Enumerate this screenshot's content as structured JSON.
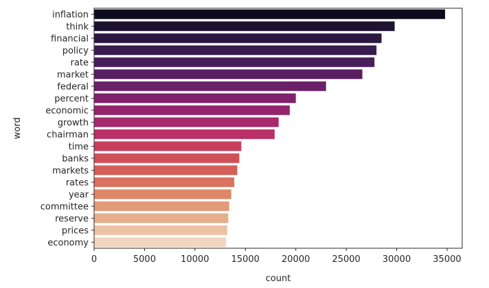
{
  "chart_data": {
    "type": "bar",
    "orientation": "horizontal",
    "categories": [
      "inflation",
      "think",
      "financial",
      "policy",
      "rate",
      "market",
      "federal",
      "percent",
      "economic",
      "growth",
      "chairman",
      "time",
      "banks",
      "markets",
      "rates",
      "year",
      "committee",
      "reserve",
      "prices",
      "economy"
    ],
    "values": [
      34800,
      29800,
      28500,
      28000,
      27800,
      26600,
      23000,
      20000,
      19400,
      18300,
      17900,
      14600,
      14400,
      14200,
      13900,
      13600,
      13400,
      13300,
      13200,
      13100
    ],
    "colors": [
      "#0f0b1f",
      "#1e1231",
      "#2c1741",
      "#3a1b4f",
      "#491e5b",
      "#581f63",
      "#6b2168",
      "#7f216b",
      "#93246b",
      "#a62a6a",
      "#b93066",
      "#c83f5e",
      "#cf5158",
      "#d35f57",
      "#d9735f",
      "#de8867",
      "#e29b77",
      "#e6ae8c",
      "#ecc2a6",
      "#f1d6c2"
    ],
    "title": "",
    "xlabel": "count",
    "ylabel": "word",
    "xlim": [
      0,
      36500
    ],
    "xticks": [
      0,
      5000,
      10000,
      15000,
      20000,
      25000,
      30000,
      35000
    ],
    "xtick_labels": [
      "0",
      "5000",
      "10000",
      "15000",
      "20000",
      "25000",
      "30000",
      "35000"
    ],
    "grid": false
  }
}
